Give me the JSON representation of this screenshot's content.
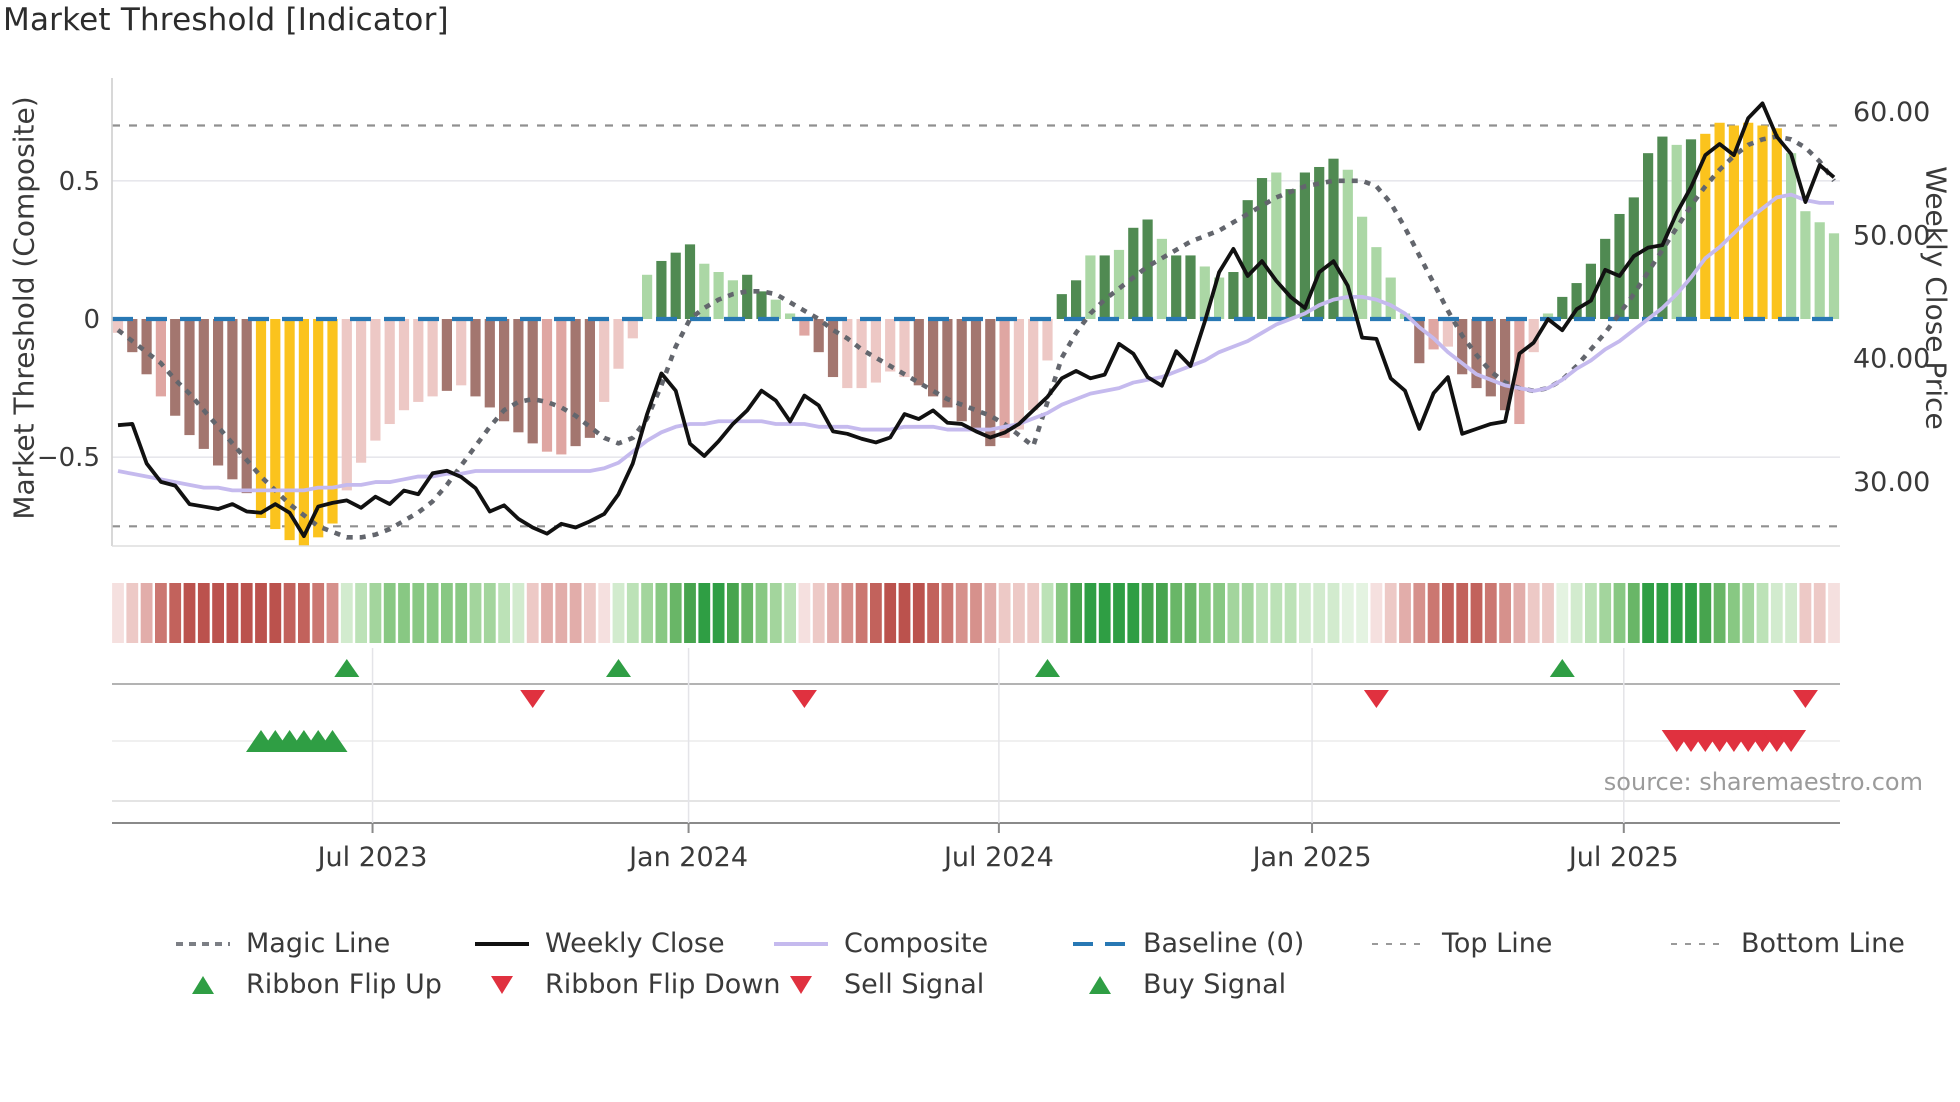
{
  "title": "Market Threshold [Indicator]",
  "source_credit": "source: sharemaestro.com",
  "axes": {
    "left": {
      "title": "Market Threshold (Composite)",
      "ticks": [
        {
          "label": "0.5",
          "v": 0.5
        },
        {
          "label": "0",
          "v": 0
        },
        {
          "label": "−0.5",
          "v": -0.5
        }
      ],
      "range": [
        -0.82,
        0.87
      ]
    },
    "right": {
      "title": "Weekly Close Price",
      "ticks": [
        {
          "label": "60.00",
          "v": 60
        },
        {
          "label": "50.00",
          "v": 50
        },
        {
          "label": "40.00",
          "v": 40
        },
        {
          "label": "30.00",
          "v": 30
        }
      ],
      "range": [
        24.7,
        62.8
      ]
    },
    "x": {
      "ticks": [
        {
          "label": "Jul 2023",
          "i": 17.8
        },
        {
          "label": "Jan 2024",
          "i": 39.9
        },
        {
          "label": "Jul 2024",
          "i": 61.6
        },
        {
          "label": "Jan 2025",
          "i": 83.5
        },
        {
          "label": "Jul 2025",
          "i": 105.3
        }
      ]
    }
  },
  "chart_data": {
    "type": "bar",
    "subtype": "bar+line combo with signal ribbon",
    "n": 121,
    "period": "weekly, Feb 2023 - Oct 2025",
    "baseline": 0,
    "top_line": 0.7,
    "bottom_line": -0.75,
    "grid": "horizontal at +0.5 and -0.5",
    "legend_position": "bottom",
    "bar_palette": {
      "D": "#a3766f",
      "P": "#dfa6a2",
      "p": "#edc8c5",
      "Y": "#fbc31d",
      "G": "#508a52",
      "L": "#abd7a5"
    },
    "bars": {
      "name": "Market Threshold (Composite)",
      "axis": "left",
      "values": [
        -0.05,
        -0.12,
        -0.2,
        -0.28,
        -0.35,
        -0.42,
        -0.47,
        -0.53,
        -0.58,
        -0.63,
        -0.72,
        -0.76,
        -0.8,
        -0.82,
        -0.79,
        -0.74,
        -0.62,
        -0.52,
        -0.44,
        -0.38,
        -0.33,
        -0.3,
        -0.28,
        -0.26,
        -0.24,
        -0.28,
        -0.32,
        -0.37,
        -0.41,
        -0.45,
        -0.48,
        -0.49,
        -0.46,
        -0.43,
        -0.3,
        -0.18,
        -0.07,
        0.16,
        0.21,
        0.24,
        0.27,
        0.2,
        0.17,
        0.14,
        0.16,
        0.1,
        0.07,
        0.02,
        -0.06,
        -0.12,
        -0.21,
        -0.25,
        -0.25,
        -0.23,
        -0.19,
        -0.21,
        -0.24,
        -0.28,
        -0.32,
        -0.37,
        -0.4,
        -0.46,
        -0.43,
        -0.4,
        -0.33,
        -0.15,
        0.09,
        0.14,
        0.23,
        0.23,
        0.25,
        0.33,
        0.36,
        0.29,
        0.23,
        0.23,
        0.19,
        0.15,
        0.17,
        0.43,
        0.51,
        0.53,
        0.47,
        0.53,
        0.55,
        0.58,
        0.54,
        0.37,
        0.26,
        0.15,
        0.02,
        -0.16,
        -0.11,
        -0.1,
        -0.2,
        -0.25,
        -0.28,
        -0.33,
        -0.38,
        -0.12,
        0.02,
        0.08,
        0.13,
        0.2,
        0.29,
        0.38,
        0.44,
        0.6,
        0.66,
        0.63,
        0.65,
        0.67,
        0.71,
        0.7,
        0.71,
        0.7,
        0.69,
        0.6,
        0.39,
        0.35,
        0.31
      ],
      "colors": "p,D,D,P,D,D,D,D,D,D,Y,Y,Y,Y,Y,Y,p,p,p,p,p,p,p,D,p,D,D,D,D,D,P,P,D,D,p,p,p,L,G,G,G,L,L,L,G,G,L,L,P,D,D,p,p,p,p,p,D,D,D,D,D,D,P,p,p,p,G,G,L,G,L,G,G,L,G,G,L,L,G,G,G,L,G,G,G,G,L,L,L,L,L,D,P,p,D,D,D,D,P,p,L,G,G,G,G,G,G,G,G,L,G,Y,Y,Y,Y,Y,Y,L,L,L,L"
    },
    "series": [
      {
        "name": "Weekly Close",
        "axis": "right",
        "color": "#111111",
        "style": "solid",
        "width": 3.8,
        "values": [
          34.6,
          34.7,
          31.5,
          30.0,
          29.7,
          28.2,
          28.0,
          27.8,
          28.2,
          27.6,
          27.5,
          28.2,
          27.5,
          25.6,
          28.0,
          28.3,
          28.5,
          27.9,
          28.8,
          28.2,
          29.3,
          29.0,
          30.7,
          30.9,
          30.4,
          29.5,
          27.6,
          28.1,
          27.0,
          26.3,
          25.8,
          26.6,
          26.3,
          26.8,
          27.4,
          29.0,
          31.5,
          35.5,
          38.8,
          37.4,
          33.1,
          32.1,
          33.3,
          34.7,
          35.8,
          37.4,
          36.6,
          34.9,
          37.0,
          36.2,
          34.1,
          33.9,
          33.5,
          33.2,
          33.6,
          35.5,
          35.1,
          35.8,
          34.8,
          34.7,
          34.1,
          33.6,
          34.0,
          34.7,
          35.8,
          36.9,
          38.4,
          39.0,
          38.4,
          38.7,
          41.2,
          40.4,
          38.5,
          37.8,
          40.6,
          39.4,
          43.0,
          47.0,
          48.9,
          46.7,
          47.9,
          46.3,
          45.0,
          44.1,
          47.0,
          47.9,
          45.9,
          41.7,
          41.6,
          38.4,
          37.4,
          34.3,
          37.2,
          38.5,
          33.9,
          34.3,
          34.7,
          34.9,
          40.4,
          41.3,
          43.2,
          42.3,
          44.0,
          44.7,
          47.2,
          46.7,
          48.3,
          49.0,
          49.2,
          51.8,
          53.9,
          56.5,
          57.4,
          56.5,
          59.5,
          60.7,
          58.0,
          56.6,
          52.7,
          55.7,
          54.7
        ]
      },
      {
        "name": "Composite",
        "axis": "left",
        "color": "#c5baee",
        "style": "solid",
        "width": 3.8,
        "values": [
          -0.55,
          -0.56,
          -0.57,
          -0.58,
          -0.59,
          -0.6,
          -0.61,
          -0.61,
          -0.62,
          -0.62,
          -0.62,
          -0.62,
          -0.62,
          -0.62,
          -0.61,
          -0.61,
          -0.6,
          -0.6,
          -0.59,
          -0.59,
          -0.58,
          -0.57,
          -0.57,
          -0.56,
          -0.56,
          -0.55,
          -0.55,
          -0.55,
          -0.55,
          -0.55,
          -0.55,
          -0.55,
          -0.55,
          -0.55,
          -0.54,
          -0.52,
          -0.48,
          -0.44,
          -0.41,
          -0.39,
          -0.38,
          -0.38,
          -0.37,
          -0.37,
          -0.37,
          -0.37,
          -0.38,
          -0.38,
          -0.38,
          -0.39,
          -0.39,
          -0.39,
          -0.4,
          -0.4,
          -0.4,
          -0.39,
          -0.39,
          -0.39,
          -0.4,
          -0.4,
          -0.4,
          -0.4,
          -0.39,
          -0.38,
          -0.36,
          -0.34,
          -0.31,
          -0.29,
          -0.27,
          -0.26,
          -0.25,
          -0.23,
          -0.22,
          -0.21,
          -0.19,
          -0.17,
          -0.15,
          -0.12,
          -0.1,
          -0.08,
          -0.05,
          -0.02,
          0.0,
          0.02,
          0.05,
          0.07,
          0.08,
          0.08,
          0.07,
          0.05,
          0.02,
          -0.03,
          -0.07,
          -0.12,
          -0.16,
          -0.2,
          -0.22,
          -0.24,
          -0.25,
          -0.26,
          -0.25,
          -0.22,
          -0.18,
          -0.15,
          -0.11,
          -0.08,
          -0.04,
          0.0,
          0.04,
          0.09,
          0.15,
          0.22,
          0.26,
          0.31,
          0.36,
          0.4,
          0.44,
          0.45,
          0.43,
          0.42,
          0.42
        ]
      },
      {
        "name": "Magic Line",
        "axis": "left",
        "color": "#63666d",
        "style": "dashed",
        "width": 4.6,
        "values": [
          -0.04,
          -0.08,
          -0.12,
          -0.16,
          -0.22,
          -0.27,
          -0.33,
          -0.39,
          -0.45,
          -0.51,
          -0.57,
          -0.62,
          -0.67,
          -0.71,
          -0.75,
          -0.77,
          -0.79,
          -0.79,
          -0.78,
          -0.76,
          -0.73,
          -0.7,
          -0.66,
          -0.6,
          -0.53,
          -0.46,
          -0.39,
          -0.33,
          -0.3,
          -0.29,
          -0.3,
          -0.32,
          -0.35,
          -0.39,
          -0.43,
          -0.45,
          -0.43,
          -0.36,
          -0.24,
          -0.1,
          0.0,
          0.04,
          0.07,
          0.09,
          0.1,
          0.1,
          0.09,
          0.06,
          0.03,
          0.0,
          -0.04,
          -0.07,
          -0.11,
          -0.14,
          -0.17,
          -0.2,
          -0.23,
          -0.26,
          -0.29,
          -0.31,
          -0.33,
          -0.35,
          -0.38,
          -0.42,
          -0.46,
          -0.3,
          -0.14,
          -0.05,
          0.02,
          0.07,
          0.11,
          0.15,
          0.19,
          0.22,
          0.25,
          0.28,
          0.3,
          0.32,
          0.35,
          0.38,
          0.41,
          0.44,
          0.46,
          0.48,
          0.49,
          0.5,
          0.5,
          0.5,
          0.48,
          0.42,
          0.33,
          0.23,
          0.13,
          0.03,
          -0.06,
          -0.13,
          -0.19,
          -0.23,
          -0.25,
          -0.26,
          -0.25,
          -0.22,
          -0.17,
          -0.11,
          -0.05,
          0.02,
          0.09,
          0.17,
          0.25,
          0.33,
          0.41,
          0.48,
          0.54,
          0.59,
          0.63,
          0.65,
          0.66,
          0.65,
          0.62,
          0.57,
          0.5
        ]
      }
    ],
    "ribbon": {
      "palette": {
        "R1": "#f5e0df",
        "R2": "#edc9c6",
        "R3": "#e2adaa",
        "R4": "#d6918c",
        "R5": "#cb7771",
        "R6": "#c2625c",
        "R7": "#bb524d",
        "G1": "#e4f3e1",
        "G2": "#d2ebce",
        "G3": "#bce2b7",
        "G4": "#a3d59d",
        "G5": "#88c883",
        "G6": "#69b667",
        "G7": "#47a44e",
        "G8": "#2f9e44"
      },
      "cells": "R1,R2,R3,R5,R6,R7,R7,R7,R7,R7,R7,R7,R6,R6,R5,R4,G2,G3,G4,G5,G5,G5,G5,G5,G5,G4,G4,G3,G2,R2,R3,R3,R3,R2,R1,G2,G3,G4,G5,G6,G7,G8,G8,G7,G6,G5,G4,G3,R1,R2,R3,R4,R5,R6,R7,R7,R7,R6,R5,R4,R4,R3,R2,R2,R2,G3,G5,G7,G8,G8,G8,G8,G7,G7,G6,G6,G5,G5,G4,G4,G3,G3,G3,G2,G2,G2,G1,G1,R1,R2,R3,R4,R5,R6,R6,R6,R5,R4,R3,R2,R2,G1,G2,G3,G4,G5,G6,G8,G8,G8,G8,G7,G6,G5,G4,G3,G2,G2,R2,R2,R1"
    },
    "signals": {
      "ribbon_flip_up": [
        16,
        35,
        65,
        101
      ],
      "ribbon_flip_down": [
        29,
        48,
        88,
        118
      ],
      "buy": [
        10,
        11,
        12,
        13,
        14,
        15
      ],
      "sell": [
        109,
        110,
        111,
        112,
        113,
        114,
        115,
        116,
        117
      ],
      "up_color": "#2f9e44",
      "down_color": "#e0313f"
    },
    "baseline_color": "#2878b4",
    "topbottom_color": "#909090"
  },
  "legend": {
    "row1": [
      {
        "key": "magic",
        "swatch": "dash",
        "label": "Magic Line",
        "color": "#7c7f85"
      },
      {
        "key": "close",
        "swatch": "solid",
        "label": "Weekly Close",
        "color": "#111111"
      },
      {
        "key": "composite",
        "swatch": "solid",
        "label": "Composite",
        "color": "#c5baee"
      },
      {
        "key": "baseline",
        "swatch": "longdash",
        "label": "Baseline (0)",
        "color": "#2878b4"
      },
      {
        "key": "topline",
        "swatch": "dot",
        "label": "Top Line",
        "color": "#9a9a9a"
      },
      {
        "key": "bottomline",
        "swatch": "dot",
        "label": "Bottom Line",
        "color": "#9a9a9a"
      }
    ],
    "row2": [
      {
        "key": "flipup",
        "swatch": "triup",
        "label": "Ribbon Flip Up",
        "color": "#2f9e44"
      },
      {
        "key": "flipdown",
        "swatch": "tridown",
        "label": "Ribbon Flip Down",
        "color": "#e0313f"
      },
      {
        "key": "sell",
        "swatch": "tridown",
        "label": "Sell Signal",
        "color": "#e0313f"
      },
      {
        "key": "buy",
        "swatch": "triup",
        "label": "Buy Signal",
        "color": "#2f9e44"
      }
    ]
  }
}
